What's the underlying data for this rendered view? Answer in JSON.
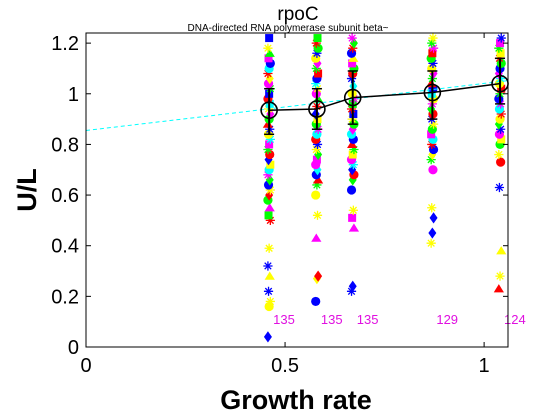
{
  "chart_data": {
    "type": "scatter",
    "title": "rpoC",
    "subtitle": "DNA-directed RNA polymerase subunit beta~",
    "xlabel": "Growth rate",
    "ylabel": "U/L",
    "xlim": [
      0,
      1.06
    ],
    "ylim": [
      0,
      1.24
    ],
    "x_ticks": [
      "0",
      "0.5",
      "1"
    ],
    "y_ticks": [
      "0",
      "0.2",
      "0.4",
      "0.6",
      "0.8",
      "1",
      "1.2"
    ],
    "grid": false,
    "conditions": [
      {
        "x": 0.46,
        "mean": 0.935,
        "err_low": 0.84,
        "err_high": 1.02,
        "count": "135"
      },
      {
        "x": 0.58,
        "mean": 0.94,
        "err_low": 0.86,
        "err_high": 1.02,
        "count": "135"
      },
      {
        "x": 0.67,
        "mean": 0.985,
        "err_low": 0.88,
        "err_high": 1.09,
        "count": "135"
      },
      {
        "x": 0.87,
        "mean": 1.005,
        "err_low": 0.9,
        "err_high": 1.09,
        "count": "129"
      },
      {
        "x": 1.04,
        "mean": 1.04,
        "err_low": 0.96,
        "err_high": 1.14,
        "count": "124"
      }
    ],
    "fit_line": {
      "x": [
        0,
        1.06
      ],
      "y": [
        0.855,
        1.052
      ],
      "color": "#00ffff",
      "style": "dashed"
    },
    "mean_line_color": "#000000",
    "marker_colors": [
      "#ff0000",
      "#00ff00",
      "#0000ff",
      "#ff00ff",
      "#ffff00",
      "#00ffff",
      "#000000"
    ],
    "points": {
      "0.46": [
        [
          0.04,
          "#0000ff",
          "diamond"
        ],
        [
          0.16,
          "#ffff00",
          "circle"
        ],
        [
          0.18,
          "#ffff00",
          "star"
        ],
        [
          0.22,
          "#0000ff",
          "star"
        ],
        [
          0.28,
          "#ffff00",
          "triangle"
        ],
        [
          0.32,
          "#0000ff",
          "star"
        ],
        [
          0.39,
          "#ffff00",
          "star"
        ],
        [
          0.5,
          "#ff0000",
          "star"
        ],
        [
          0.52,
          "#00ff00",
          "square"
        ],
        [
          0.55,
          "#ff00ff",
          "triangle"
        ],
        [
          0.58,
          "#00ff00",
          "circle"
        ],
        [
          0.6,
          "#ff0000",
          "diamond"
        ],
        [
          0.62,
          "#ffff00",
          "star"
        ],
        [
          0.64,
          "#0000ff",
          "circle"
        ],
        [
          0.66,
          "#00ff00",
          "diamond"
        ],
        [
          0.68,
          "#ff00ff",
          "star"
        ],
        [
          0.7,
          "#00ffff",
          "circle"
        ],
        [
          0.72,
          "#ffff00",
          "square"
        ],
        [
          0.74,
          "#0000ff",
          "diamond"
        ],
        [
          0.76,
          "#ff0000",
          "circle"
        ],
        [
          0.78,
          "#00ff00",
          "star"
        ],
        [
          0.8,
          "#ff00ff",
          "square"
        ],
        [
          0.82,
          "#00ffff",
          "star"
        ],
        [
          0.84,
          "#ffff00",
          "circle"
        ],
        [
          0.86,
          "#0000ff",
          "star"
        ],
        [
          0.88,
          "#ff0000",
          "triangle"
        ],
        [
          0.9,
          "#00ff00",
          "circle"
        ],
        [
          0.92,
          "#ff00ff",
          "diamond"
        ],
        [
          0.94,
          "#ffff00",
          "star"
        ],
        [
          0.96,
          "#00ffff",
          "square"
        ],
        [
          0.98,
          "#ff0000",
          "circle"
        ],
        [
          1.0,
          "#0000ff",
          "square"
        ],
        [
          1.02,
          "#00ff00",
          "star"
        ],
        [
          1.04,
          "#ff00ff",
          "circle"
        ],
        [
          1.06,
          "#ffff00",
          "diamond"
        ],
        [
          1.08,
          "#ff0000",
          "star"
        ],
        [
          1.1,
          "#00ffff",
          "circle"
        ],
        [
          1.12,
          "#0000ff",
          "circle"
        ],
        [
          1.14,
          "#ff00ff",
          "square"
        ],
        [
          1.16,
          "#00ff00",
          "triangle"
        ],
        [
          1.18,
          "#ffff00",
          "star"
        ],
        [
          1.22,
          "#0000ff",
          "square"
        ]
      ],
      "0.58": [
        [
          0.18,
          "#0000ff",
          "circle"
        ],
        [
          0.27,
          "#ffff00",
          "diamond"
        ],
        [
          0.28,
          "#ff0000",
          "diamond"
        ],
        [
          0.43,
          "#ff00ff",
          "triangle"
        ],
        [
          0.52,
          "#ffff00",
          "star"
        ],
        [
          0.6,
          "#ffff00",
          "circle"
        ],
        [
          0.64,
          "#00ff00",
          "star"
        ],
        [
          0.66,
          "#ff0000",
          "triangle"
        ],
        [
          0.68,
          "#0000ff",
          "circle"
        ],
        [
          0.7,
          "#00ffff",
          "diamond"
        ],
        [
          0.72,
          "#ff00ff",
          "circle"
        ],
        [
          0.74,
          "#ff00ff",
          "square"
        ],
        [
          0.76,
          "#00ff00",
          "diamond"
        ],
        [
          0.78,
          "#ffff00",
          "star"
        ],
        [
          0.8,
          "#0000ff",
          "star"
        ],
        [
          0.82,
          "#ff0000",
          "circle"
        ],
        [
          0.84,
          "#00ffff",
          "circle"
        ],
        [
          0.86,
          "#ff00ff",
          "star"
        ],
        [
          0.88,
          "#00ff00",
          "circle"
        ],
        [
          0.9,
          "#ffff00",
          "square"
        ],
        [
          0.92,
          "#0000ff",
          "diamond"
        ],
        [
          0.95,
          "#ff0000",
          "star"
        ],
        [
          0.98,
          "#00ff00",
          "triangle"
        ],
        [
          1.0,
          "#ff00ff",
          "circle"
        ],
        [
          1.02,
          "#ffff00",
          "star"
        ],
        [
          1.04,
          "#00ffff",
          "star"
        ],
        [
          1.06,
          "#0000ff",
          "circle"
        ],
        [
          1.08,
          "#ff0000",
          "square"
        ],
        [
          1.1,
          "#00ff00",
          "star"
        ],
        [
          1.12,
          "#ff00ff",
          "diamond"
        ],
        [
          1.14,
          "#ffff00",
          "circle"
        ],
        [
          1.16,
          "#0000ff",
          "star"
        ],
        [
          1.18,
          "#00ff00",
          "circle"
        ],
        [
          1.2,
          "#ff0000",
          "star"
        ],
        [
          1.22,
          "#00ff00",
          "square"
        ]
      ],
      "0.67": [
        [
          0.22,
          "#0000ff",
          "star"
        ],
        [
          0.24,
          "#0000ff",
          "diamond"
        ],
        [
          0.47,
          "#ff00ff",
          "triangle"
        ],
        [
          0.51,
          "#ff00ff",
          "square"
        ],
        [
          0.54,
          "#ffff00",
          "star"
        ],
        [
          0.62,
          "#0000ff",
          "circle"
        ],
        [
          0.66,
          "#00ff00",
          "diamond"
        ],
        [
          0.68,
          "#ff0000",
          "circle"
        ],
        [
          0.7,
          "#0000ff",
          "diamond"
        ],
        [
          0.72,
          "#00ffff",
          "star"
        ],
        [
          0.74,
          "#ff00ff",
          "circle"
        ],
        [
          0.76,
          "#ffff00",
          "square"
        ],
        [
          0.78,
          "#00ff00",
          "star"
        ],
        [
          0.8,
          "#ff0000",
          "triangle"
        ],
        [
          0.82,
          "#0000ff",
          "circle"
        ],
        [
          0.84,
          "#00ffff",
          "circle"
        ],
        [
          0.86,
          "#ff00ff",
          "diamond"
        ],
        [
          0.88,
          "#00ff00",
          "circle"
        ],
        [
          0.9,
          "#ffff00",
          "star"
        ],
        [
          0.92,
          "#0000ff",
          "square"
        ],
        [
          0.94,
          "#ff0000",
          "star"
        ],
        [
          0.96,
          "#00ff00",
          "square"
        ],
        [
          0.98,
          "#ff00ff",
          "star"
        ],
        [
          1.0,
          "#ffff00",
          "circle"
        ],
        [
          1.03,
          "#00ffff",
          "diamond"
        ],
        [
          1.06,
          "#0000ff",
          "star"
        ],
        [
          1.08,
          "#ff0000",
          "circle"
        ],
        [
          1.1,
          "#00ff00",
          "circle"
        ],
        [
          1.12,
          "#ff00ff",
          "square"
        ],
        [
          1.14,
          "#ffff00",
          "triangle"
        ],
        [
          1.16,
          "#0000ff",
          "circle"
        ],
        [
          1.18,
          "#ff0000",
          "star"
        ],
        [
          1.2,
          "#00ff00",
          "diamond"
        ],
        [
          1.22,
          "#ff00ff",
          "star"
        ]
      ],
      "0.87": [
        [
          0.41,
          "#ffff00",
          "star"
        ],
        [
          0.45,
          "#0000ff",
          "diamond"
        ],
        [
          0.51,
          "#0000ff",
          "diamond"
        ],
        [
          0.55,
          "#ffff00",
          "star"
        ],
        [
          0.7,
          "#ff00ff",
          "circle"
        ],
        [
          0.74,
          "#00ff00",
          "star"
        ],
        [
          0.76,
          "#ffff00",
          "diamond"
        ],
        [
          0.78,
          "#0000ff",
          "circle"
        ],
        [
          0.8,
          "#ff0000",
          "star"
        ],
        [
          0.82,
          "#00ffff",
          "circle"
        ],
        [
          0.84,
          "#ff00ff",
          "square"
        ],
        [
          0.86,
          "#00ff00",
          "circle"
        ],
        [
          0.88,
          "#ffff00",
          "star"
        ],
        [
          0.9,
          "#0000ff",
          "star"
        ],
        [
          0.92,
          "#ff0000",
          "circle"
        ],
        [
          0.94,
          "#00ff00",
          "diamond"
        ],
        [
          0.96,
          "#ff00ff",
          "star"
        ],
        [
          0.98,
          "#ffff00",
          "circle"
        ],
        [
          1.0,
          "#00ffff",
          "square"
        ],
        [
          1.02,
          "#0000ff",
          "circle"
        ],
        [
          1.04,
          "#ff0000",
          "triangle"
        ],
        [
          1.06,
          "#00ff00",
          "star"
        ],
        [
          1.08,
          "#ff00ff",
          "diamond"
        ],
        [
          1.1,
          "#ffff00",
          "circle"
        ],
        [
          1.12,
          "#0000ff",
          "star"
        ],
        [
          1.14,
          "#00ff00",
          "circle"
        ],
        [
          1.16,
          "#ff0000",
          "square"
        ],
        [
          1.18,
          "#ff00ff",
          "star"
        ],
        [
          1.2,
          "#00ff00",
          "star"
        ],
        [
          1.22,
          "#ffff00",
          "star"
        ]
      ],
      "1.04": [
        [
          0.23,
          "#ff0000",
          "triangle"
        ],
        [
          0.28,
          "#ffff00",
          "star"
        ],
        [
          0.38,
          "#ffff00",
          "triangle"
        ],
        [
          0.63,
          "#0000ff",
          "star"
        ],
        [
          0.73,
          "#ff0000",
          "circle"
        ],
        [
          0.76,
          "#ffff00",
          "star"
        ],
        [
          0.8,
          "#00ff00",
          "circle"
        ],
        [
          0.82,
          "#ffff00",
          "square"
        ],
        [
          0.84,
          "#ff00ff",
          "circle"
        ],
        [
          0.86,
          "#0000ff",
          "star"
        ],
        [
          0.88,
          "#00ff00",
          "diamond"
        ],
        [
          0.9,
          "#ffff00",
          "circle"
        ],
        [
          0.92,
          "#ff0000",
          "star"
        ],
        [
          0.94,
          "#00ffff",
          "circle"
        ],
        [
          0.96,
          "#ff00ff",
          "star"
        ],
        [
          0.98,
          "#0000ff",
          "circle"
        ],
        [
          1.0,
          "#00ff00",
          "star"
        ],
        [
          1.02,
          "#ff0000",
          "square"
        ],
        [
          1.04,
          "#ffff00",
          "circle"
        ],
        [
          1.06,
          "#00ffff",
          "star"
        ],
        [
          1.08,
          "#ff00ff",
          "diamond"
        ],
        [
          1.1,
          "#0000ff",
          "circle"
        ],
        [
          1.12,
          "#00ff00",
          "circle"
        ],
        [
          1.14,
          "#ff0000",
          "star"
        ],
        [
          1.16,
          "#ffff00",
          "square"
        ],
        [
          1.18,
          "#00ff00",
          "star"
        ],
        [
          1.2,
          "#ff00ff",
          "square"
        ],
        [
          1.22,
          "#0000ff",
          "star"
        ]
      ]
    }
  }
}
